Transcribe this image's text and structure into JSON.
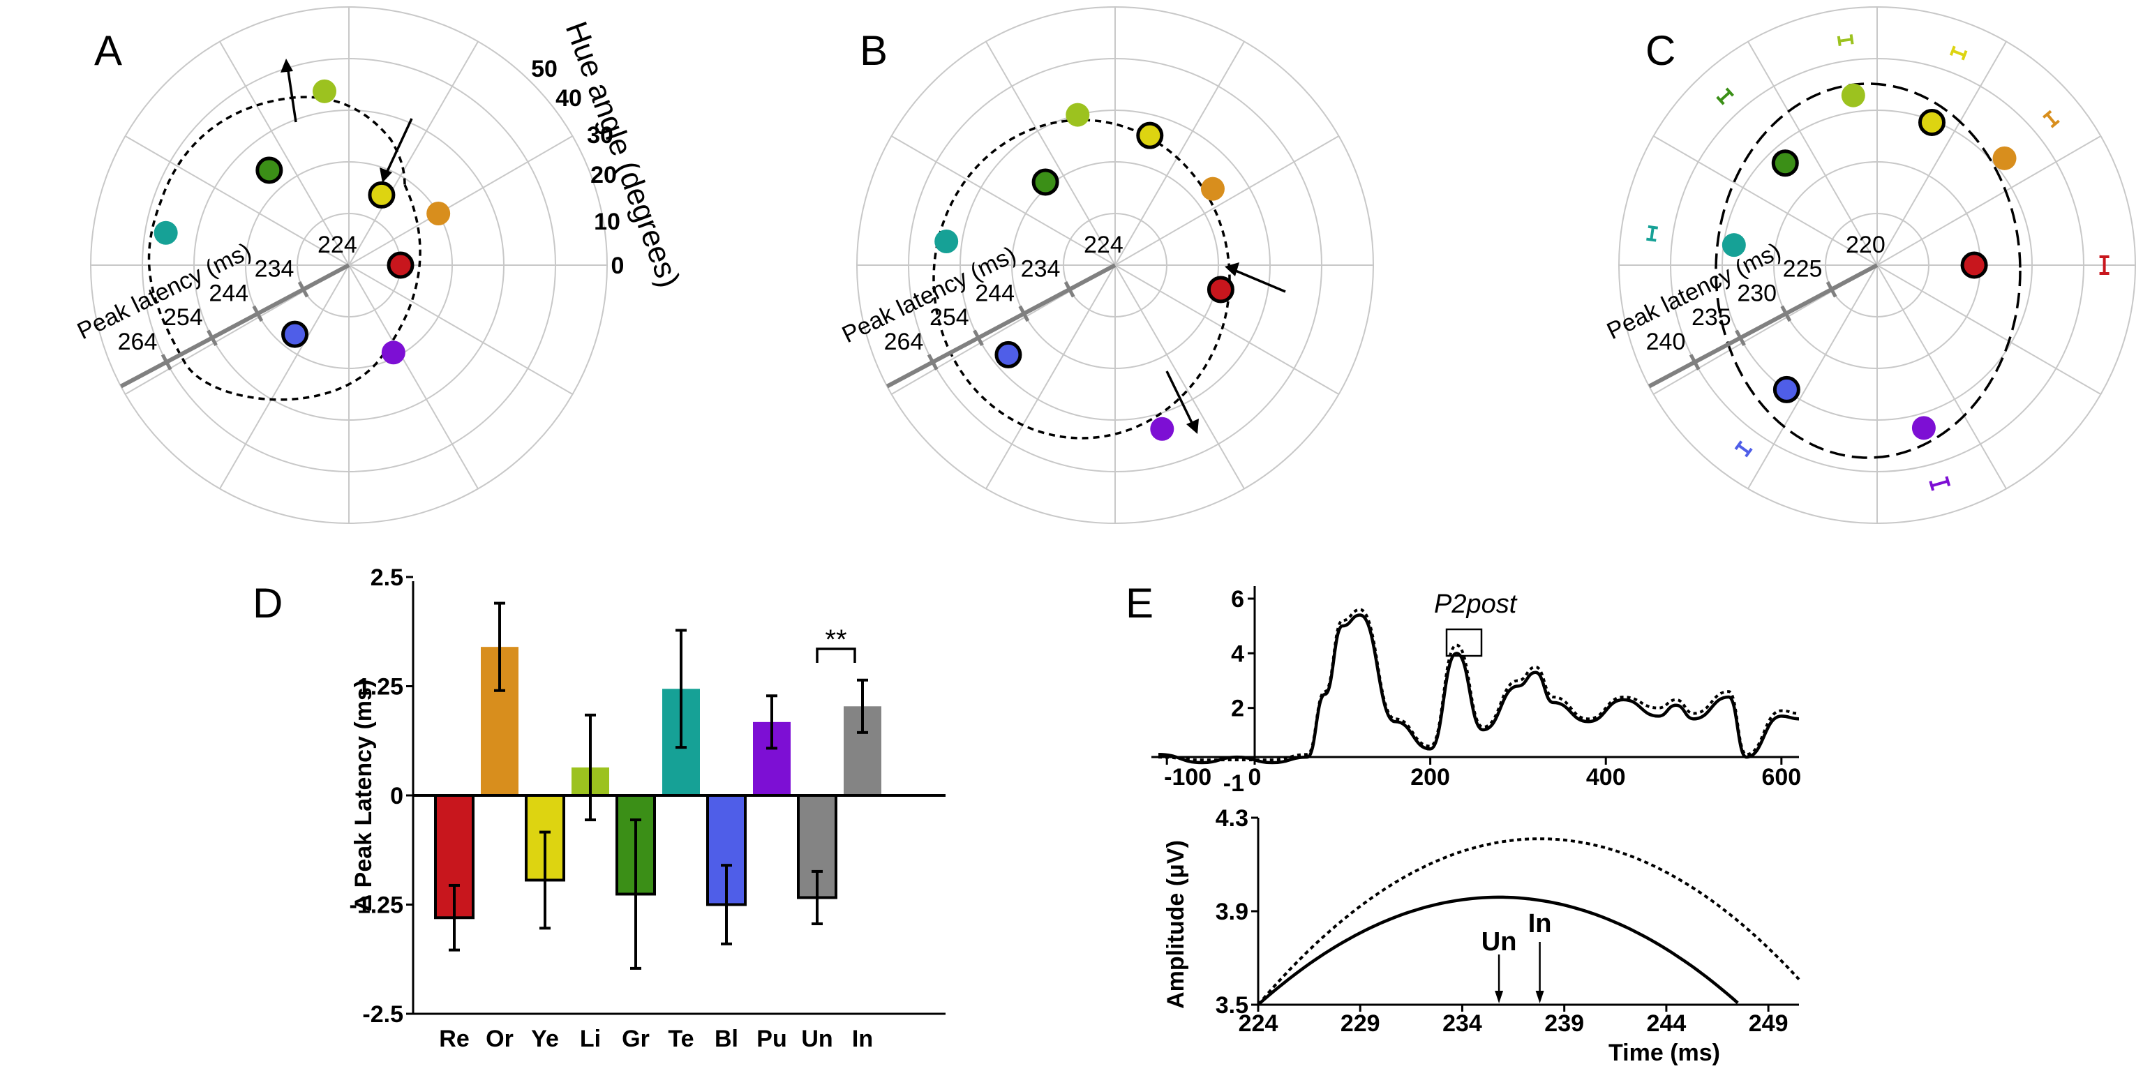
{
  "panel_letters": [
    "A",
    "B",
    "C",
    "D",
    "E"
  ],
  "colors": {
    "Re": "#c8161d",
    "Or": "#d88e1d",
    "Ye": "#ddd411",
    "Li": "#9cc21f",
    "Gr": "#3b8f17",
    "Te": "#16a196",
    "Bl": "#4f5ee8",
    "Pu": "#7d0fd4",
    "Un": "#848484",
    "In": "#848484"
  },
  "chart_data": [
    {
      "panel": "A",
      "type": "scatter",
      "coordinate_system": "polar",
      "radial_axis_label": "Peak latency (ms)",
      "radial_ticks": [
        "224",
        "234",
        "244",
        "254",
        "264"
      ],
      "right_axis_label": "Hue angle (degrees)",
      "right_ticks": [
        "0",
        "10",
        "20",
        "30",
        "40",
        "50"
      ],
      "points": [
        {
          "color": "Re",
          "hue_angle_deg": 0,
          "latency_ms": 234,
          "outlined": true
        },
        {
          "color": "Or",
          "hue_angle_deg": 30,
          "latency_ms": 244,
          "outlined": false
        },
        {
          "color": "Ye",
          "hue_angle_deg": 65,
          "latency_ms": 239,
          "outlined": true
        },
        {
          "color": "Li",
          "hue_angle_deg": 98,
          "latency_ms": 258,
          "outlined": false
        },
        {
          "color": "Gr",
          "hue_angle_deg": 130,
          "latency_ms": 248,
          "outlined": true
        },
        {
          "color": "Te",
          "hue_angle_deg": 170,
          "latency_ms": 260,
          "outlined": false
        },
        {
          "color": "Bl",
          "hue_angle_deg": 232,
          "latency_ms": 241,
          "outlined": true
        },
        {
          "color": "Pu",
          "hue_angle_deg": 297,
          "latency_ms": 243,
          "outlined": false
        }
      ]
    },
    {
      "panel": "B",
      "type": "scatter",
      "coordinate_system": "polar",
      "radial_axis_label": "Peak latency (ms)",
      "radial_ticks": [
        "224",
        "234",
        "244",
        "254",
        "264"
      ],
      "points": [
        {
          "color": "Re",
          "hue_angle_deg": 347,
          "latency_ms": 245,
          "outlined": true
        },
        {
          "color": "Or",
          "hue_angle_deg": 38,
          "latency_ms": 248,
          "outlined": false
        },
        {
          "color": "Ye",
          "hue_angle_deg": 75,
          "latency_ms": 250,
          "outlined": true
        },
        {
          "color": "Li",
          "hue_angle_deg": 104,
          "latency_ms": 254,
          "outlined": false
        },
        {
          "color": "Gr",
          "hue_angle_deg": 130,
          "latency_ms": 245,
          "outlined": true
        },
        {
          "color": "Te",
          "hue_angle_deg": 172,
          "latency_ms": 257,
          "outlined": false
        },
        {
          "color": "Bl",
          "hue_angle_deg": 220,
          "latency_ms": 251,
          "outlined": true
        },
        {
          "color": "Pu",
          "hue_angle_deg": 286,
          "latency_ms": 257,
          "outlined": false
        }
      ]
    },
    {
      "panel": "C",
      "type": "scatter",
      "coordinate_system": "polar",
      "radial_axis_label": "Peak latency (ms)",
      "radial_ticks": [
        "220",
        "225",
        "230",
        "235",
        "240"
      ],
      "points": [
        {
          "color": "Re",
          "hue_angle_deg": 0,
          "latency_ms": 229.4,
          "outlined": true
        },
        {
          "color": "Or",
          "hue_angle_deg": 40,
          "latency_ms": 236.1,
          "outlined": false
        },
        {
          "color": "Ye",
          "hue_angle_deg": 69,
          "latency_ms": 234.8,
          "outlined": true
        },
        {
          "color": "Li",
          "hue_angle_deg": 98,
          "latency_ms": 236.6,
          "outlined": false
        },
        {
          "color": "Gr",
          "hue_angle_deg": 132,
          "latency_ms": 233.3,
          "outlined": true
        },
        {
          "color": "Te",
          "hue_angle_deg": 172,
          "latency_ms": 234.0,
          "outlined": false
        },
        {
          "color": "Bl",
          "hue_angle_deg": 234,
          "latency_ms": 234.9,
          "outlined": true
        },
        {
          "color": "Pu",
          "hue_angle_deg": 286,
          "latency_ms": 236.4,
          "outlined": false
        }
      ]
    },
    {
      "panel": "D",
      "type": "bar",
      "ylabel": "Δ Peak Latency (ms)",
      "ylim": [
        -2.5,
        2.5
      ],
      "yticks": [
        "2.5",
        "1.25",
        "0",
        "-1.25",
        "-2.5"
      ],
      "categories": [
        "Re",
        "Or",
        "Ye",
        "Li",
        "Gr",
        "Te",
        "Bl",
        "Pu",
        "Un",
        "In"
      ],
      "values": [
        -1.4,
        1.7,
        -0.97,
        0.32,
        -1.13,
        1.22,
        -1.25,
        0.84,
        -1.17,
        1.02
      ],
      "errors": [
        0.37,
        0.5,
        0.55,
        0.6,
        0.85,
        0.67,
        0.45,
        0.3,
        0.3,
        0.3
      ],
      "outlined": [
        true,
        false,
        true,
        false,
        true,
        false,
        true,
        false,
        true,
        false
      ],
      "annotation": "**"
    },
    {
      "panel": "E-top",
      "type": "line",
      "xticks": [
        "-100",
        "0",
        "200",
        "400",
        "600"
      ],
      "yticks": [
        "-1",
        "2",
        "4",
        "6"
      ],
      "xlim": [
        -100,
        620
      ],
      "ylim": [
        -1,
        6
      ],
      "annotation": "P2post",
      "series": [
        {
          "style": "solid",
          "x": [
            -100,
            -60,
            -20,
            20,
            60,
            80,
            100,
            120,
            160,
            200,
            230,
            260,
            300,
            320,
            340,
            380,
            420,
            460,
            480,
            500,
            540,
            560,
            600,
            620
          ],
          "y": [
            0.3,
            0.0,
            0.2,
            0.0,
            0.2,
            2.5,
            5.0,
            5.4,
            1.5,
            0.5,
            4.0,
            1.2,
            2.8,
            3.3,
            2.2,
            1.5,
            2.3,
            1.7,
            2.1,
            1.6,
            2.4,
            0.2,
            1.7,
            1.6
          ]
        },
        {
          "style": "dotted",
          "x": [
            -100,
            -60,
            -20,
            20,
            60,
            80,
            100,
            120,
            160,
            200,
            230,
            260,
            300,
            320,
            340,
            380,
            420,
            460,
            480,
            500,
            540,
            560,
            600,
            620
          ],
          "y": [
            0.2,
            0.1,
            0.1,
            0.1,
            0.3,
            2.6,
            5.2,
            5.6,
            1.6,
            0.6,
            4.3,
            1.3,
            3.0,
            3.5,
            2.4,
            1.6,
            2.4,
            2.0,
            2.3,
            1.8,
            2.6,
            0.3,
            1.9,
            1.8
          ]
        }
      ]
    },
    {
      "panel": "E-bottom",
      "type": "line",
      "xlabel": "Time (ms)",
      "ylabel": "Amplitude (μV)",
      "xticks": [
        "224",
        "229",
        "234",
        "239",
        "244",
        "249"
      ],
      "yticks": [
        "4.3",
        "3.9",
        "3.5"
      ],
      "xlim": [
        224,
        250.5
      ],
      "ylim": [
        3.5,
        4.3
      ],
      "annotations": [
        {
          "label": "Un",
          "x": 235.8
        },
        {
          "label": "In",
          "x": 237.8
        }
      ],
      "series": [
        {
          "style": "solid",
          "peak_x": 235.8,
          "peak_y": 3.96,
          "start_y": 3.5,
          "start_x": 224
        },
        {
          "style": "dotted",
          "peak_x": 237.8,
          "peak_y": 4.21,
          "start_y": 3.5,
          "start_x": 224
        }
      ]
    }
  ]
}
